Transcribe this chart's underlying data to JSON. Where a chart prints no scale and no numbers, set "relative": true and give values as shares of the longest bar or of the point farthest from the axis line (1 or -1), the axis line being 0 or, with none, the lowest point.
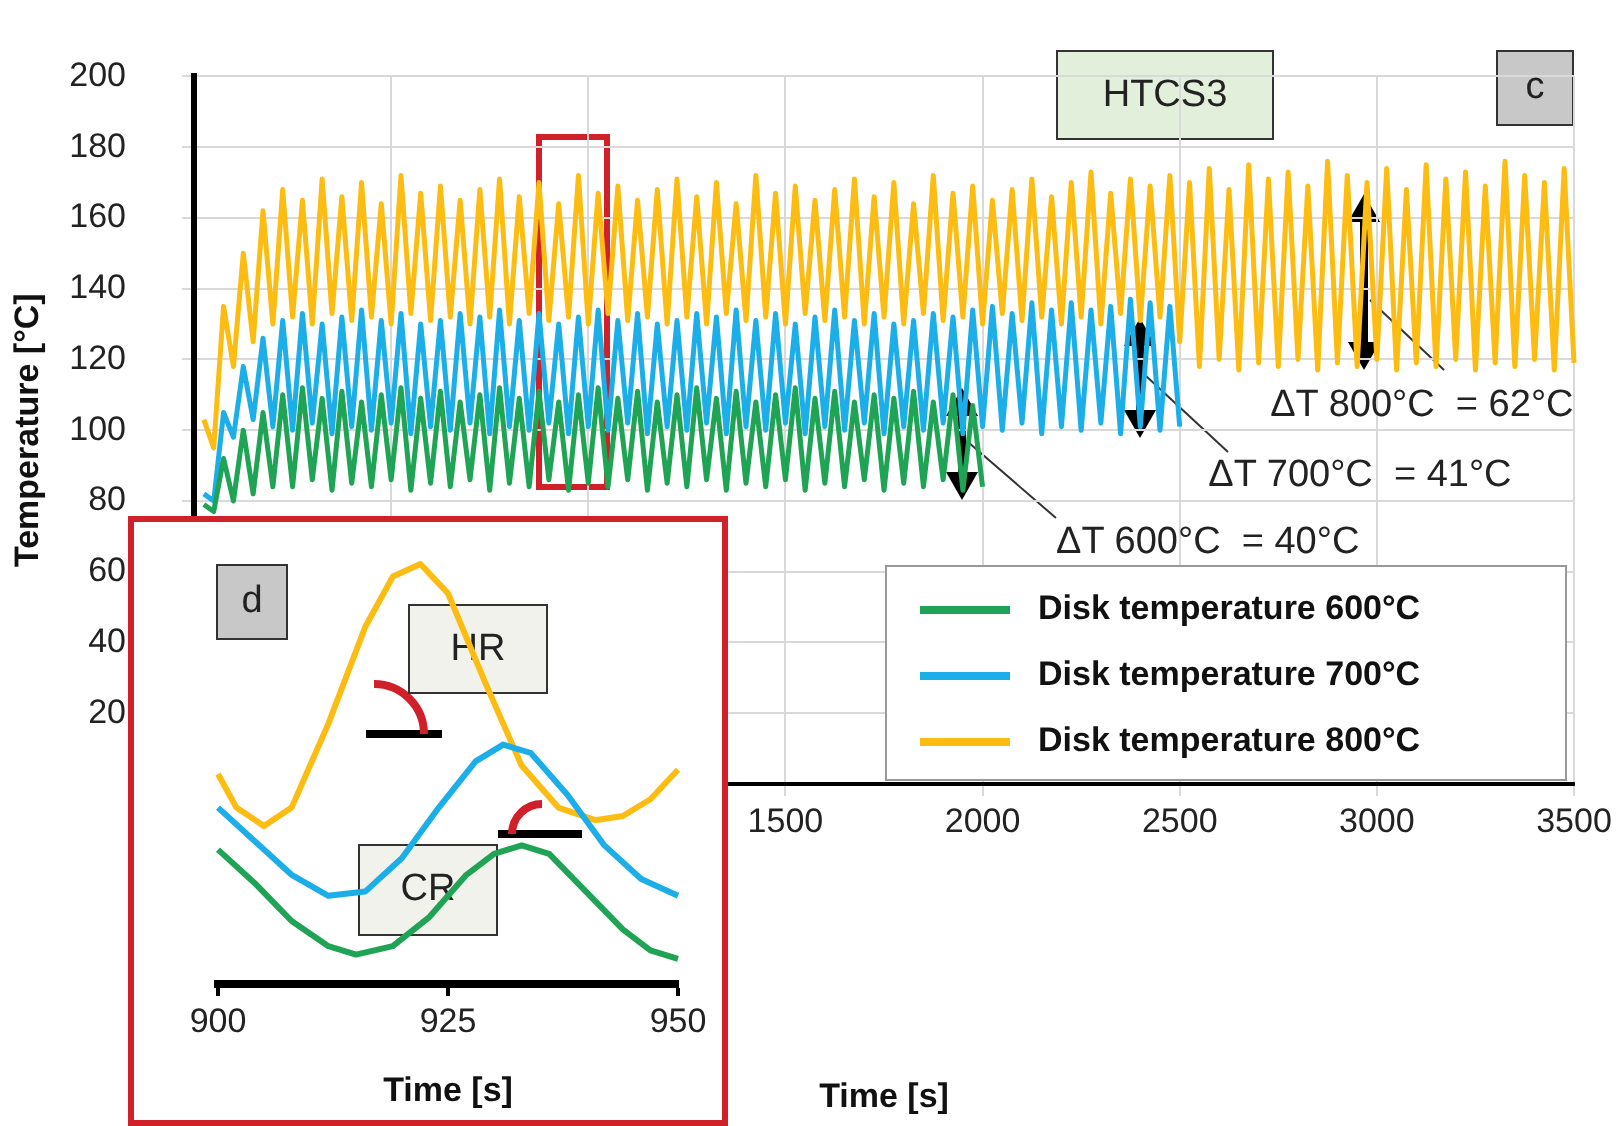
{
  "chart_data": [
    {
      "type": "line",
      "xlabel": "Time [s]",
      "ylabel": "Temperature [°C]",
      "x": [
        25,
        50,
        75,
        100,
        125,
        150,
        175,
        200,
        225,
        250,
        275,
        300,
        325,
        350,
        375,
        400,
        425,
        450,
        475,
        500,
        525,
        550,
        575,
        600,
        625,
        650,
        675,
        700,
        725,
        750,
        775,
        800,
        825,
        850,
        875,
        900,
        925,
        950,
        975,
        1000,
        1025,
        1050,
        1075,
        1100,
        1125,
        1150,
        1175,
        1200,
        1225,
        1250,
        1275,
        1300,
        1325,
        1350,
        1375,
        1400,
        1425,
        1450,
        1475,
        1500,
        1525,
        1550,
        1575,
        1600,
        1625,
        1650,
        1675,
        1700,
        1725,
        1750,
        1775,
        1800,
        1825,
        1850,
        1875,
        1900,
        1925,
        1950,
        1975,
        2000,
        2025,
        2050,
        2075,
        2100,
        2125,
        2150,
        2175,
        2200,
        2225,
        2250,
        2275,
        2300,
        2325,
        2350,
        2375,
        2400,
        2425,
        2450,
        2475,
        2500,
        2525,
        2550,
        2575,
        2600,
        2625,
        2650,
        2675,
        2700,
        2725,
        2750,
        2775,
        2800,
        2825,
        2850,
        2875,
        2900,
        2925,
        2950,
        2975,
        3000,
        3025,
        3050,
        3075,
        3100,
        3125,
        3150,
        3175,
        3200,
        3225,
        3250,
        3275,
        3300,
        3325,
        3350,
        3375,
        3400,
        3425,
        3450,
        3475,
        3500
      ],
      "series": [
        {
          "name": "Disk temperature 600°C",
          "color": "#1fa354",
          "values": [
            79,
            77,
            92,
            80,
            100,
            82,
            105,
            84,
            110,
            84,
            112,
            86,
            109,
            83,
            111,
            85,
            108,
            84,
            110,
            86,
            112,
            83,
            109,
            85,
            111,
            84,
            108,
            86,
            110,
            83,
            112,
            85,
            109,
            84,
            111,
            86,
            108,
            83,
            110,
            85,
            112,
            84,
            109,
            86,
            111,
            83,
            108,
            85,
            110,
            84,
            112,
            86,
            109,
            83,
            111,
            85,
            108,
            84,
            110,
            86,
            112,
            83,
            109,
            85,
            111,
            84,
            108,
            86,
            110,
            83,
            109,
            85,
            111,
            84,
            108,
            86,
            110,
            83,
            107,
            84,
            null,
            null,
            null,
            null,
            null,
            null,
            null,
            null,
            null,
            null,
            null,
            null,
            null,
            null,
            null,
            null,
            null,
            null,
            null,
            null,
            null,
            null,
            null,
            null,
            null,
            null,
            null,
            null,
            null,
            null,
            null,
            null,
            null,
            null,
            null,
            null,
            null,
            null,
            null,
            null,
            null,
            null,
            null,
            null,
            null,
            null,
            null,
            null,
            null,
            null,
            null,
            null,
            null,
            null,
            null,
            null,
            null,
            null,
            null,
            null
          ]
        },
        {
          "name": "Disk temperature 700°C",
          "color": "#1caee8",
          "values": [
            82,
            80,
            105,
            98,
            118,
            103,
            126,
            101,
            131,
            100,
            133,
            102,
            130,
            99,
            132,
            101,
            134,
            100,
            131,
            102,
            133,
            99,
            130,
            101,
            131,
            100,
            133,
            102,
            132,
            99,
            134,
            101,
            131,
            100,
            133,
            102,
            130,
            99,
            132,
            101,
            134,
            100,
            131,
            102,
            133,
            99,
            130,
            101,
            131,
            100,
            133,
            102,
            132,
            99,
            134,
            101,
            131,
            100,
            133,
            102,
            130,
            99,
            132,
            101,
            134,
            100,
            131,
            102,
            133,
            99,
            130,
            101,
            131,
            100,
            133,
            102,
            132,
            99,
            134,
            101,
            135,
            100,
            133,
            102,
            136,
            99,
            134,
            101,
            136,
            100,
            134,
            102,
            135,
            99,
            137,
            101,
            136,
            100,
            135,
            101,
            null,
            null,
            null,
            null,
            null,
            null,
            null,
            null,
            null,
            null,
            null,
            null,
            null,
            null,
            null,
            null,
            null,
            null,
            null,
            null,
            null,
            null,
            null,
            null,
            null,
            null,
            null,
            null,
            null,
            null,
            null,
            null,
            null,
            null,
            null,
            null,
            null,
            null,
            null,
            null
          ]
        },
        {
          "name": "Disk temperature 800°C",
          "color": "#fcbc12",
          "values": [
            103,
            95,
            135,
            118,
            150,
            125,
            162,
            130,
            168,
            132,
            165,
            130,
            171,
            133,
            166,
            131,
            170,
            132,
            164,
            130,
            172,
            133,
            167,
            131,
            169,
            132,
            165,
            130,
            168,
            132,
            171,
            130,
            166,
            133,
            170,
            131,
            164,
            132,
            172,
            130,
            167,
            133,
            169,
            131,
            165,
            132,
            168,
            130,
            171,
            132,
            166,
            130,
            170,
            133,
            164,
            131,
            172,
            132,
            167,
            130,
            169,
            133,
            165,
            131,
            168,
            132,
            171,
            130,
            166,
            132,
            170,
            130,
            164,
            133,
            172,
            131,
            167,
            132,
            169,
            130,
            165,
            133,
            168,
            131,
            171,
            132,
            166,
            130,
            170,
            132,
            173,
            130,
            167,
            133,
            171,
            131,
            169,
            132,
            172,
            125,
            170,
            118,
            174,
            120,
            168,
            117,
            175,
            119,
            171,
            118,
            173,
            120,
            169,
            117,
            176,
            119,
            172,
            118,
            170,
            120,
            174,
            117,
            168,
            119,
            175,
            118,
            171,
            120,
            173,
            117,
            169,
            119,
            176,
            118,
            172,
            120,
            170,
            117,
            174,
            119
          ]
        }
      ],
      "xlim": [
        0,
        3500
      ],
      "xticks": [
        {
          "value": 0,
          "label": null
        },
        {
          "value": 500,
          "label": null
        },
        {
          "value": 1000,
          "label": null
        },
        1500,
        2000,
        2500,
        3000,
        3500
      ],
      "ylim": [
        0,
        200
      ],
      "yticks": [
        {
          "value": 0,
          "label": null
        },
        20,
        40,
        60,
        80,
        100,
        120,
        140,
        160,
        180,
        200
      ],
      "grid": true,
      "legend": "bottom right",
      "annotations": [
        "HTCS3",
        "c",
        {
          "text": "ΔT 800°C  = 62°C",
          "x": 2968,
          "y": 142
        },
        {
          "text": "ΔT 700°C  = 41°C",
          "x": 2400,
          "y": 115
        },
        {
          "text": "ΔT 600°C  = 40°C",
          "x": 1948,
          "y": 96
        }
      ]
    },
    {
      "type": "line",
      "xlabel": "Time [s]",
      "relative": true,
      "series": [
        {
          "color": "#1fa354",
          "x": [
            900,
            904,
            908,
            912,
            915,
            919,
            923,
            927,
            930,
            933,
            936,
            940,
            944,
            947,
            950
          ],
          "values": [
            0.32,
            0.24,
            0.15,
            0.09,
            0.07,
            0.09,
            0.16,
            0.26,
            0.31,
            0.33,
            0.31,
            0.22,
            0.13,
            0.08,
            0.06
          ]
        },
        {
          "color": "#1caee8",
          "x": [
            900,
            904,
            908,
            912,
            916,
            920,
            924,
            928,
            931,
            934,
            938,
            942,
            946,
            950
          ],
          "values": [
            0.42,
            0.34,
            0.26,
            0.21,
            0.22,
            0.3,
            0.42,
            0.53,
            0.57,
            0.55,
            0.45,
            0.33,
            0.25,
            0.21
          ]
        },
        {
          "color": "#fcbc12",
          "x": [
            900,
            902,
            905,
            908,
            912,
            916,
            919,
            922,
            925,
            929,
            933,
            937,
            941,
            944,
            947,
            950
          ],
          "values": [
            0.5,
            0.42,
            0.376,
            0.42,
            0.62,
            0.85,
            0.97,
            1,
            0.93,
            0.72,
            0.52,
            0.42,
            0.39,
            0.4,
            0.44,
            0.51
          ]
        }
      ],
      "xlim": [
        900,
        950
      ],
      "xticks": [
        900,
        925,
        950
      ],
      "annotations": [
        "d",
        "HR",
        "CR"
      ]
    }
  ]
}
